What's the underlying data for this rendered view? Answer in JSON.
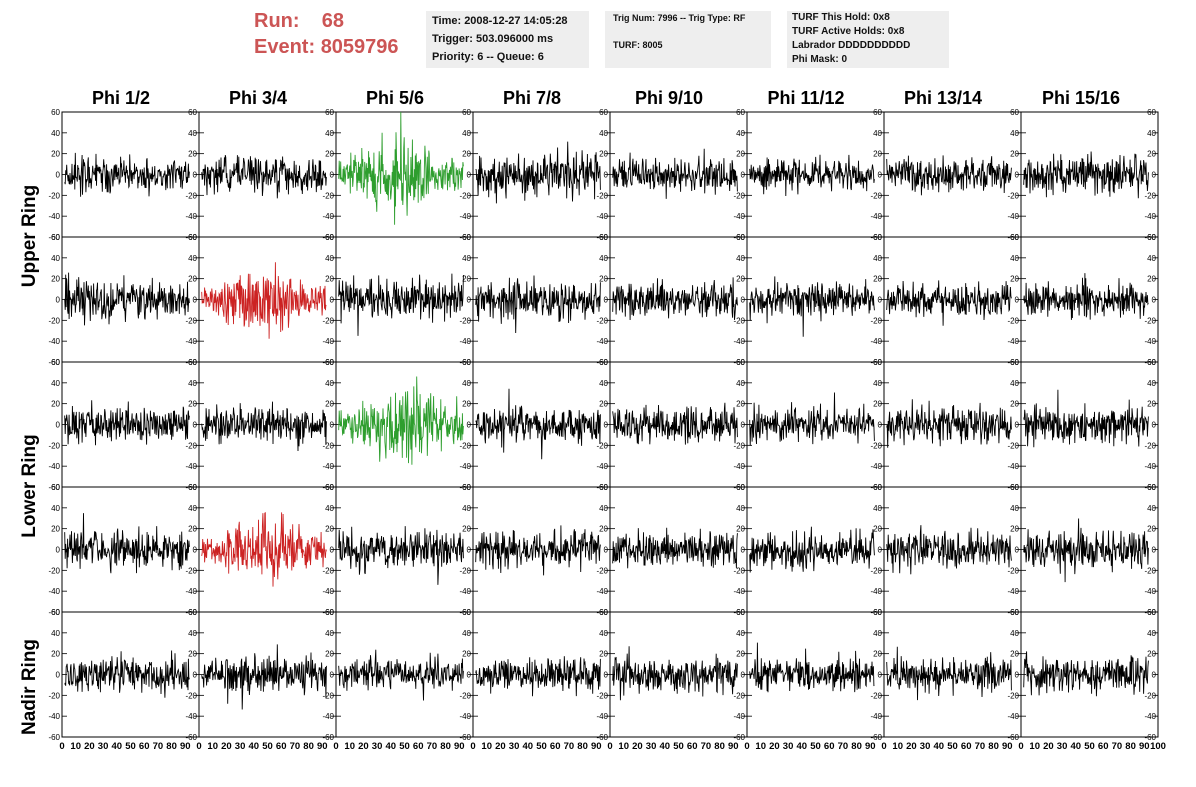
{
  "header": {
    "run_label": "Run:",
    "run_value": "68",
    "event_label": "Event:",
    "event_value": "8059796"
  },
  "info_boxes": {
    "time": {
      "time": "Time: 2008-12-27 14:05:28",
      "trigger": "Trigger: 503.096000 ms",
      "priority": "Priority: 6 -- Queue: 6"
    },
    "trig": {
      "trig_num": "Trig Num: 7996 -- Trig Type: RF",
      "turf": "TURF: 8005"
    },
    "turf": {
      "this_hold": "TURF This Hold: 0x8",
      "active_holds": "TURF Active Holds: 0x8",
      "labrador": "Labrador DDDDDDDDDD",
      "phi_mask": "Phi Mask: 0"
    }
  },
  "columns": [
    "Phi 1/2",
    "Phi 3/4",
    "Phi 5/6",
    "Phi 7/8",
    "Phi 9/10",
    "Phi 11/12",
    "Phi 13/14",
    "Phi 15/16"
  ],
  "ring_labels": {
    "upper": "Upper Ring",
    "lower": "Lower Ring",
    "nadir": "Nadir Ring"
  },
  "colors": {
    "title_red": "#cc5555",
    "info_bg": "#eeeeee",
    "trace_default": "#000000",
    "trace_green": "#2e9e2e",
    "trace_red": "#cc2222"
  },
  "chart_data": {
    "type": "line",
    "grid_rows": 5,
    "grid_cols": 8,
    "xlim": [
      0,
      100
    ],
    "ylim": [
      -60,
      60
    ],
    "x_ticks": [
      0,
      10,
      20,
      30,
      40,
      50,
      60,
      70,
      80,
      90,
      100
    ],
    "y_ticks": [
      -60,
      -40,
      -20,
      0,
      20,
      40,
      60
    ],
    "grid": false,
    "n_samples": 260,
    "highlighted_panels": [
      {
        "row": 0,
        "col": 2,
        "color": "green"
      },
      {
        "row": 1,
        "col": 1,
        "color": "red"
      },
      {
        "row": 2,
        "col": 2,
        "color": "green"
      },
      {
        "row": 3,
        "col": 1,
        "color": "red"
      }
    ],
    "panel_amplitude": [
      [
        12,
        11,
        24,
        14,
        11,
        10,
        11,
        13
      ],
      [
        13,
        22,
        13,
        12,
        11,
        11,
        11,
        11
      ],
      [
        12,
        11,
        24,
        11,
        12,
        11,
        12,
        12
      ],
      [
        12,
        22,
        13,
        12,
        11,
        12,
        12,
        12
      ],
      [
        11,
        11,
        11,
        11,
        11,
        11,
        11,
        12
      ]
    ]
  }
}
